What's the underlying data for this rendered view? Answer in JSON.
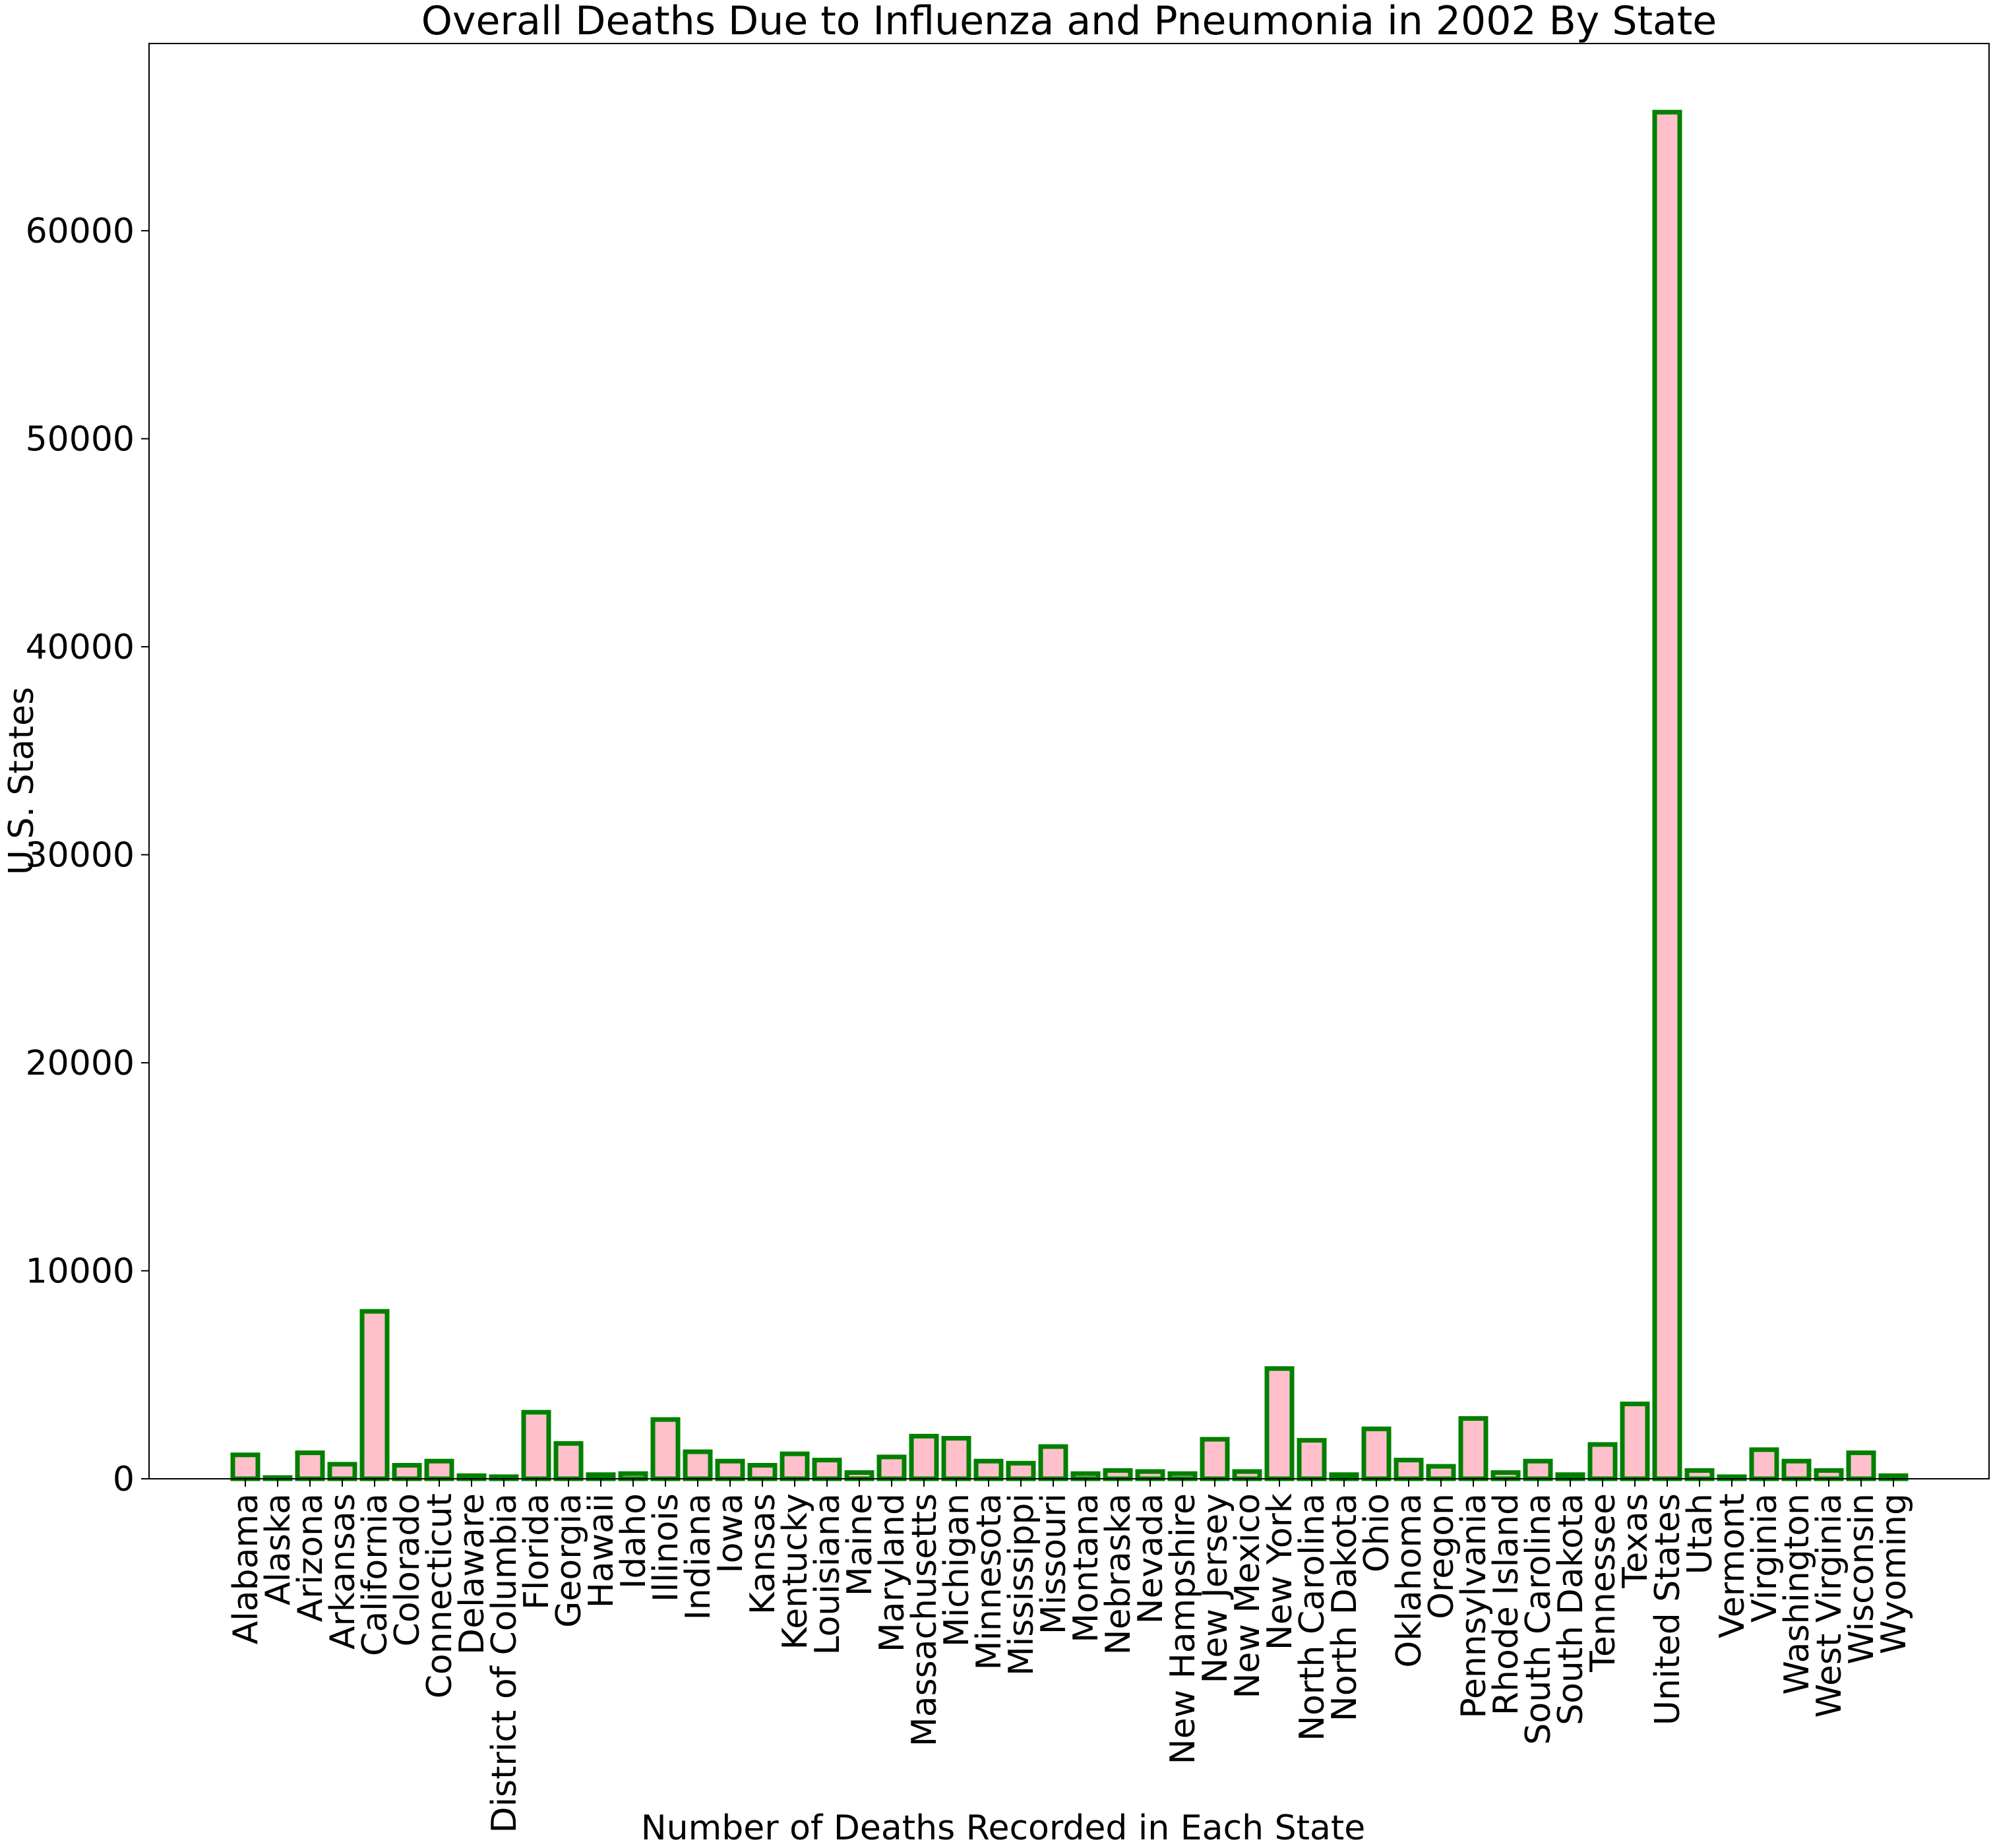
{
  "chart_data": {
    "type": "bar",
    "title": "Overall Deaths Due to Influenza and Pneumonia in 2002 By State",
    "xlabel": "Number of Deaths Recorded in Each State",
    "ylabel": "U.S. States",
    "ylim": [
      0,
      69000
    ],
    "yticks": [
      0,
      10000,
      20000,
      30000,
      40000,
      50000,
      60000
    ],
    "grid": false,
    "bar_fill": "#ffc0cb",
    "bar_edge": "#008000",
    "categories": [
      "Alabama",
      "Alaska",
      "Arizona",
      "Arkansas",
      "California",
      "Colorado",
      "Connecticut",
      "Delaware",
      "District of Columbia",
      "Florida",
      "Georgia",
      "Hawaii",
      "Idaho",
      "Illinois",
      "Indiana",
      "Iowa",
      "Kansas",
      "Kentucky",
      "Louisiana",
      "Maine",
      "Maryland",
      "Massachusetts",
      "Michigan",
      "Minnesota",
      "Mississippi",
      "Missouri",
      "Montana",
      "Nebraska",
      "Nevada",
      "New Hampshire",
      "New Jersey",
      "New Mexico",
      "New York",
      "North Carolina",
      "North Dakota",
      "Ohio",
      "Oklahoma",
      "Oregon",
      "Pennsylvania",
      "Rhode Island",
      "South Carolina",
      "South Dakota",
      "Tennessee",
      "Texas",
      "United States",
      "Utah",
      "Vermont",
      "Virginia",
      "Washington",
      "West Virginia",
      "Wisconsin",
      "Wyoming"
    ],
    "values": [
      1150,
      60,
      1250,
      700,
      8050,
      650,
      850,
      150,
      100,
      3200,
      1700,
      200,
      250,
      2850,
      1300,
      850,
      650,
      1200,
      900,
      300,
      1050,
      2050,
      1950,
      850,
      750,
      1550,
      250,
      400,
      350,
      250,
      1900,
      350,
      5300,
      1850,
      200,
      2400,
      900,
      600,
      2900,
      300,
      850,
      200,
      1650,
      3600,
      65700,
      400,
      100,
      1400,
      850,
      400,
      1250,
      150
    ]
  }
}
